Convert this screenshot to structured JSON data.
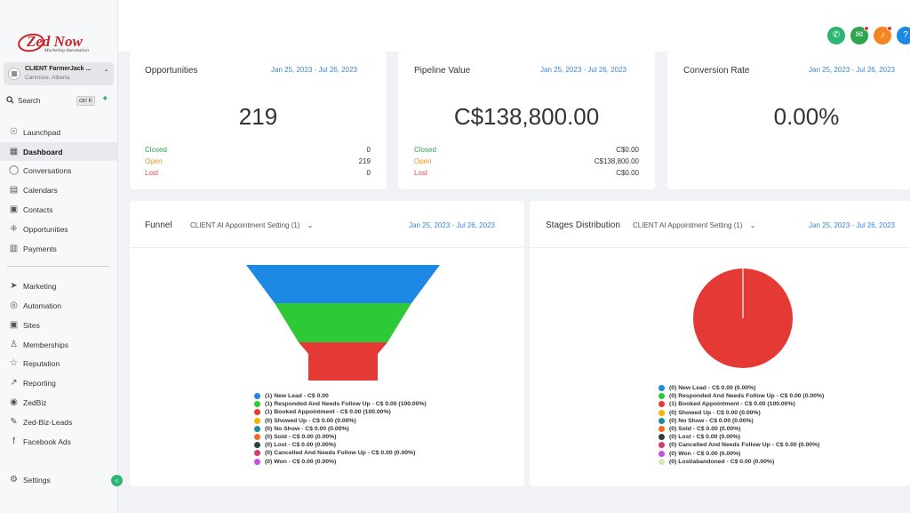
{
  "brand": {
    "name": "Zed Now",
    "tagline": "Marketing Automation"
  },
  "account": {
    "name": "CLIENT FarmerJack ...",
    "location": "Canmore, Alberta"
  },
  "search": {
    "label": "Search",
    "shortcut": "ctrl K"
  },
  "nav": {
    "items": [
      {
        "label": "Launchpad",
        "icon": "rocket-icon",
        "glyph": "☉"
      },
      {
        "label": "Dashboard",
        "icon": "dashboard-icon",
        "glyph": "▦",
        "active": true
      },
      {
        "label": "Conversations",
        "icon": "chat-icon",
        "glyph": "◯"
      },
      {
        "label": "Calendars",
        "icon": "calendar-icon",
        "glyph": "▤"
      },
      {
        "label": "Contacts",
        "icon": "contacts-icon",
        "glyph": "▣"
      },
      {
        "label": "Opportunities",
        "icon": "opportunities-icon",
        "glyph": "⁜"
      },
      {
        "label": "Payments",
        "icon": "payments-icon",
        "glyph": "▥"
      },
      {
        "label": "Marketing",
        "icon": "send-icon",
        "glyph": "➤"
      },
      {
        "label": "Automation",
        "icon": "automation-icon",
        "glyph": "◎"
      },
      {
        "label": "Sites",
        "icon": "sites-icon",
        "glyph": "▣"
      },
      {
        "label": "Memberships",
        "icon": "membership-icon",
        "glyph": "♙"
      },
      {
        "label": "Reputation",
        "icon": "star-icon",
        "glyph": "☆"
      },
      {
        "label": "Reporting",
        "icon": "reporting-icon",
        "glyph": "↗"
      },
      {
        "label": "ZedBiz",
        "icon": "zedbiz-icon",
        "glyph": "◉"
      },
      {
        "label": "Zed-Biz-Leads",
        "icon": "wrench-icon",
        "glyph": "✎"
      },
      {
        "label": "Facebook Ads",
        "icon": "facebook-icon",
        "glyph": "f"
      }
    ],
    "settings": {
      "label": "Settings",
      "icon": "gear-icon",
      "glyph": "⚙"
    }
  },
  "header": {
    "buttons": [
      {
        "name": "phone-button",
        "icon": "phone-icon",
        "glyph": "✆",
        "color": "#2bb673"
      },
      {
        "name": "announcements-button",
        "icon": "megaphone-icon",
        "glyph": "✉",
        "color": "#2ea44f",
        "badge": true
      },
      {
        "name": "notifications-button",
        "icon": "bell-icon",
        "glyph": "♪",
        "color": "#f6841f",
        "badge": true
      },
      {
        "name": "help-button",
        "icon": "help-icon",
        "glyph": "?",
        "color": "#1e88e5"
      }
    ]
  },
  "cards": {
    "opportunities": {
      "title": "Opportunities",
      "date": "Jan 25, 2023 - Jul 26, 2023",
      "value": "219",
      "stats": [
        {
          "label": "Closed",
          "value": "0",
          "color": "green"
        },
        {
          "label": "Open",
          "value": "219",
          "color": "orange"
        },
        {
          "label": "Lost",
          "value": "0",
          "color": "red"
        }
      ]
    },
    "pipeline": {
      "title": "Pipeline Value",
      "date": "Jan 25, 2023 - Jul 26, 2023",
      "value": "C$138,800.00",
      "stats": [
        {
          "label": "Closed",
          "value": "C$0.00",
          "color": "green"
        },
        {
          "label": "Open",
          "value": "C$138,800.00",
          "color": "orange"
        },
        {
          "label": "Lost",
          "value": "C$0.00",
          "color": "red"
        }
      ]
    },
    "conversion": {
      "title": "Conversion Rate",
      "date": "Jan 25, 2023 - Jul 26, 2023",
      "value": "0.00%"
    },
    "funnel": {
      "title": "Funnel",
      "pipeline": "CLIENT AI Appointment Setting (1)",
      "date": "Jan 25, 2023 - Jul 26, 2023",
      "legend": [
        {
          "text": "(1) New Lead - C$ 0.00",
          "color": "#1e88e5"
        },
        {
          "text": "(1) Responded And Needs Follow Up - C$ 0.00 (100.00%)",
          "color": "#2dc937"
        },
        {
          "text": "(1) Booked Appointment - C$ 0.00 (100.00%)",
          "color": "#e53935"
        },
        {
          "text": "(0) Showed Up - C$ 0.00 (0.00%)",
          "color": "#f4b400"
        },
        {
          "text": "(0) No Show - C$ 0.00 (0.00%)",
          "color": "#1a8f9c"
        },
        {
          "text": "(0) Sold - C$ 0.00 (0.00%)",
          "color": "#f26b1d"
        },
        {
          "text": "(0) Lost - C$ 0.00 (0.00%)",
          "color": "#2f3e46"
        },
        {
          "text": "(0) Cancelled And Needs Follow Up - C$ 0.00 (0.00%)",
          "color": "#d23c6e"
        },
        {
          "text": "(0) Won - C$ 0.00 (0.00%)",
          "color": "#c84fe0"
        }
      ]
    },
    "stages": {
      "title": "Stages Distribution",
      "pipeline": "CLIENT AI Appointment Setting (1)",
      "date": "Jan 25, 2023 - Jul 26, 2023",
      "legend": [
        {
          "text": "(0) New Lead - C$ 0.00 (0.00%)",
          "color": "#1e88e5"
        },
        {
          "text": "(0) Responded And Needs Follow Up - C$ 0.00 (0.00%)",
          "color": "#2dc937"
        },
        {
          "text": "(1) Booked Appointment - C$ 0.00 (100.00%)",
          "color": "#e53935"
        },
        {
          "text": "(0) Showed Up - C$ 0.00 (0.00%)",
          "color": "#f4b400"
        },
        {
          "text": "(0) No Show - C$ 0.00 (0.00%)",
          "color": "#1a8f9c"
        },
        {
          "text": "(0) Sold - C$ 0.00 (0.00%)",
          "color": "#f26b1d"
        },
        {
          "text": "(0) Lost - C$ 0.00 (0.00%)",
          "color": "#2f3e46"
        },
        {
          "text": "(0) Cancelled And Needs Follow Up - C$ 0.00 (0.00%)",
          "color": "#d23c6e"
        },
        {
          "text": "(0) Won - C$ 0.00 (0.00%)",
          "color": "#c84fe0"
        },
        {
          "text": "(0) Lost/abandoned - C$ 0.00 (0.00%)",
          "color": "#d6e6b2"
        }
      ]
    }
  },
  "chart_data": [
    {
      "type": "funnel",
      "categories": [
        "New Lead",
        "Responded And Needs Follow Up",
        "Booked Appointment",
        "Showed Up",
        "No Show",
        "Sold",
        "Lost",
        "Cancelled And Needs Follow Up",
        "Won"
      ],
      "values": [
        1,
        1,
        1,
        0,
        0,
        0,
        0,
        0,
        0
      ],
      "colors": [
        "#1e88e5",
        "#2dc937",
        "#e53935",
        "#f4b400",
        "#1a8f9c",
        "#f26b1d",
        "#2f3e46",
        "#d23c6e",
        "#c84fe0"
      ]
    },
    {
      "type": "pie",
      "categories": [
        "New Lead",
        "Responded And Needs Follow Up",
        "Booked Appointment",
        "Showed Up",
        "No Show",
        "Sold",
        "Lost",
        "Cancelled And Needs Follow Up",
        "Won",
        "Lost/abandoned"
      ],
      "values": [
        0,
        0,
        100,
        0,
        0,
        0,
        0,
        0,
        0,
        0
      ],
      "colors": [
        "#1e88e5",
        "#2dc937",
        "#e53935",
        "#f4b400",
        "#1a8f9c",
        "#f26b1d",
        "#2f3e46",
        "#d23c6e",
        "#c84fe0",
        "#d6e6b2"
      ]
    }
  ]
}
